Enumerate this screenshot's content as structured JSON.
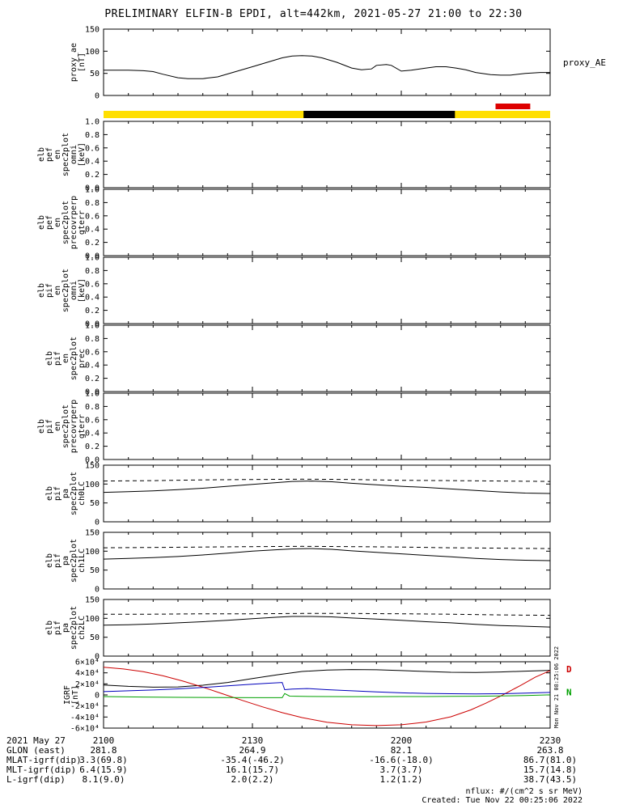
{
  "title": "PRELIMINARY ELFIN-B EPDI, alt=442km, 2021-05-27 21:00 to 22:30",
  "side_timestamp": "Mon Nov 21 08:25:06 2022",
  "footer": {
    "nflux": "nflux: #/(cm^2 s sr MeV)",
    "created": "Created: Tue Nov 22 00:25:06 2022"
  },
  "time_axis": {
    "ticks": [
      "2100",
      "2130",
      "2200",
      "2230"
    ],
    "tick_minutes": [
      0,
      30,
      60,
      90
    ],
    "minor_step": 5,
    "total": 90
  },
  "status_bar": {
    "segments": [
      {
        "name": "yellow-coverage-bar",
        "color": "#ffdf00",
        "t0": 0,
        "t1": 90,
        "row": "main"
      },
      {
        "name": "black-coverage-bar",
        "color": "#000000",
        "t0": 40.3,
        "t1": 70.8,
        "row": "main"
      },
      {
        "name": "red-coverage-bar",
        "color": "#dd0000",
        "t0": 79,
        "t1": 86,
        "row": "above"
      }
    ]
  },
  "ephemeris": {
    "date_label": "2021 May 27",
    "rows": [
      {
        "label": "GLON (east)",
        "values": [
          "281.8",
          "264.9",
          "82.1",
          "263.8"
        ]
      },
      {
        "label": "MLAT-igrf(dip)",
        "values": [
          "3.3(69.8)",
          "-35.4(-46.2)",
          "-16.6(-18.0)",
          "86.7(81.0)"
        ]
      },
      {
        "label": "MLT-igrf(dip)",
        "values": [
          "6.4(15.9)",
          "16.1(15.7)",
          "3.7(3.7)",
          "15.7(14.8)"
        ]
      },
      {
        "label": "L-igrf(dip)",
        "values": [
          "8.1(9.0)",
          "2.0(2.2)",
          "1.2(1.2)",
          "38.7(43.5)"
        ]
      }
    ]
  },
  "chart_data": [
    {
      "id": "proxy_ae",
      "type": "line",
      "ylabel_lines": [
        "proxy_ae",
        "[nT]"
      ],
      "right_label": "proxy_AE",
      "ylim": [
        0,
        150
      ],
      "yticks": [
        0,
        50,
        100,
        150
      ],
      "ytick_labels": [
        "0",
        "50",
        "100",
        "150"
      ],
      "series": [
        {
          "name": "proxy_AE",
          "color": "#000000",
          "dash": false,
          "x": [
            0,
            2,
            5,
            8,
            10,
            12,
            15,
            17,
            20,
            23,
            26,
            30,
            33,
            36,
            38,
            40,
            42,
            44,
            47,
            50,
            52,
            54,
            55,
            57,
            58,
            60,
            62,
            65,
            67,
            69,
            71,
            73,
            75,
            78,
            80,
            82,
            85,
            88,
            90
          ],
          "v": [
            57,
            57,
            57,
            56,
            54,
            48,
            40,
            38,
            38,
            42,
            52,
            65,
            75,
            85,
            89,
            90,
            89,
            85,
            75,
            62,
            58,
            60,
            68,
            70,
            68,
            55,
            57,
            62,
            65,
            65,
            62,
            58,
            52,
            47,
            46,
            46,
            50,
            52,
            52
          ]
        }
      ]
    },
    {
      "id": "elb_pef_en_omni",
      "type": "spectrogram",
      "ylabel_lines": [
        "elb",
        "pef",
        "en",
        "spec2plot",
        "omni",
        "[keV]"
      ],
      "ylim": [
        0,
        1
      ],
      "yticks": [
        0,
        0.2,
        0.4,
        0.6,
        0.8,
        1.0
      ],
      "ytick_labels": [
        "0.0",
        "0.2",
        "0.4",
        "0.6",
        "0.8",
        "1.0"
      ],
      "series": []
    },
    {
      "id": "elb_pef_en_precovrperp_gterr",
      "type": "spectrogram",
      "ylabel_lines": [
        "elb",
        "pef",
        "en",
        "spec2plot",
        "precovrperp",
        "gterr"
      ],
      "ylim": [
        0,
        1
      ],
      "yticks": [
        0,
        0.2,
        0.4,
        0.6,
        0.8,
        1.0
      ],
      "ytick_labels": [
        "0.0",
        "0.2",
        "0.4",
        "0.6",
        "0.8",
        "1.0"
      ],
      "series": []
    },
    {
      "id": "elb_pif_en_omni",
      "type": "spectrogram",
      "ylabel_lines": [
        "elb",
        "pif",
        "en",
        "spec2plot",
        "omni",
        "[keV]"
      ],
      "ylim": [
        0,
        1
      ],
      "yticks": [
        0,
        0.2,
        0.4,
        0.6,
        0.8,
        1.0
      ],
      "ytick_labels": [
        "0.0",
        "0.2",
        "0.4",
        "0.6",
        "0.8",
        "1.0"
      ],
      "series": []
    },
    {
      "id": "elb_pif_en_prec",
      "type": "spectrogram",
      "ylabel_lines": [
        "elb",
        "pif",
        "en",
        "spec2plot",
        "prec"
      ],
      "ylim": [
        0,
        1
      ],
      "yticks": [
        0,
        0.2,
        0.4,
        0.6,
        0.8,
        1.0
      ],
      "ytick_labels": [
        "0.0",
        "0.2",
        "0.4",
        "0.6",
        "0.8",
        "1.0"
      ],
      "series": []
    },
    {
      "id": "elb_pif_en_precovrperp_gterr",
      "type": "spectrogram",
      "ylabel_lines": [
        "elb",
        "pif",
        "en",
        "spec2plot",
        "precovrperp",
        "gterr"
      ],
      "ylim": [
        0,
        1
      ],
      "yticks": [
        0,
        0.2,
        0.4,
        0.6,
        0.8,
        1.0
      ],
      "ytick_labels": [
        "0.0",
        "0.2",
        "0.4",
        "0.6",
        "0.8",
        "1.0"
      ],
      "series": []
    },
    {
      "id": "ch0lc",
      "type": "line",
      "ylabel_lines": [
        "elb",
        "pif",
        "pa",
        "spec2plot",
        "ch0LC"
      ],
      "ylim": [
        0,
        150
      ],
      "yticks": [
        0,
        50,
        100,
        150
      ],
      "ytick_labels": [
        "0",
        "50",
        "100",
        "150"
      ],
      "series": [
        {
          "name": "pitch-angle",
          "color": "#000000",
          "dash": false,
          "x": [
            0,
            5,
            10,
            15,
            20,
            25,
            30,
            35,
            38,
            42,
            46,
            50,
            55,
            60,
            65,
            70,
            75,
            80,
            85,
            90
          ],
          "v": [
            78,
            80,
            82,
            85,
            89,
            94,
            99,
            104,
            107,
            108,
            106,
            102,
            98,
            94,
            91,
            87,
            83,
            79,
            76,
            75
          ]
        },
        {
          "name": "loss-cone",
          "color": "#000000",
          "dash": true,
          "x": [
            0,
            10,
            20,
            30,
            40,
            50,
            60,
            70,
            80,
            90
          ],
          "v": [
            108,
            109,
            111,
            112,
            113,
            112,
            110,
            109,
            108,
            107
          ]
        }
      ]
    },
    {
      "id": "ch1lc",
      "type": "line",
      "ylabel_lines": [
        "elb",
        "pif",
        "pa",
        "spec2plot",
        "ch1LC"
      ],
      "ylim": [
        0,
        150
      ],
      "yticks": [
        0,
        50,
        100,
        150
      ],
      "ytick_labels": [
        "0",
        "50",
        "100",
        "150"
      ],
      "series": [
        {
          "name": "pitch-angle",
          "color": "#000000",
          "dash": false,
          "x": [
            0,
            5,
            10,
            15,
            20,
            25,
            30,
            35,
            38,
            42,
            46,
            50,
            55,
            60,
            65,
            70,
            75,
            80,
            85,
            90
          ],
          "v": [
            79,
            81,
            83,
            86,
            90,
            95,
            100,
            104,
            106,
            107,
            105,
            101,
            97,
            93,
            89,
            85,
            81,
            78,
            76,
            75
          ]
        },
        {
          "name": "loss-cone",
          "color": "#000000",
          "dash": true,
          "x": [
            0,
            10,
            20,
            30,
            40,
            50,
            60,
            70,
            80,
            90
          ],
          "v": [
            109,
            110,
            111,
            112,
            113,
            112,
            111,
            109,
            108,
            107
          ]
        }
      ]
    },
    {
      "id": "ch2lc",
      "type": "line",
      "ylabel_lines": [
        "elb",
        "pif",
        "pa",
        "spec2plot",
        "ch2LC"
      ],
      "ylim": [
        0,
        150
      ],
      "yticks": [
        0,
        50,
        100,
        150
      ],
      "ytick_labels": [
        "0",
        "50",
        "100",
        "150"
      ],
      "series": [
        {
          "name": "pitch-angle",
          "color": "#000000",
          "dash": false,
          "x": [
            0,
            5,
            10,
            15,
            20,
            25,
            30,
            35,
            38,
            42,
            46,
            50,
            55,
            60,
            65,
            70,
            75,
            80,
            85,
            90
          ],
          "v": [
            82,
            83,
            85,
            88,
            91,
            95,
            99,
            103,
            105,
            105,
            104,
            101,
            98,
            95,
            91,
            88,
            84,
            81,
            79,
            77
          ]
        },
        {
          "name": "loss-cone",
          "color": "#000000",
          "dash": true,
          "x": [
            0,
            10,
            20,
            30,
            40,
            50,
            60,
            70,
            80,
            90
          ],
          "v": [
            111,
            111,
            112,
            112,
            113,
            113,
            112,
            111,
            109,
            108
          ]
        }
      ]
    },
    {
      "id": "igrf",
      "type": "line",
      "ylabel_lines": [
        "IGRF",
        "[nT]"
      ],
      "ylim": [
        -60000,
        60000
      ],
      "yticks": [
        -60000,
        -40000,
        -20000,
        0,
        20000,
        40000,
        60000
      ],
      "ytick_labels": [
        "-6×10⁴",
        "-4×10⁴",
        "-2×10⁴",
        "0",
        "2×10⁴",
        "4×10⁴",
        "6×10⁴"
      ],
      "right_labels": [
        {
          "text": "D",
          "color": "#cc0000",
          "value": 47000
        },
        {
          "text": "N",
          "color": "#00a000",
          "value": 5000
        }
      ],
      "series": [
        {
          "name": "component-black",
          "color": "#000000",
          "dash": false,
          "x": [
            0,
            5,
            10,
            15,
            20,
            25,
            30,
            35,
            40,
            45,
            50,
            55,
            60,
            65,
            70,
            75,
            80,
            85,
            90
          ],
          "v": [
            18000,
            15500,
            14000,
            14500,
            17500,
            22500,
            29500,
            36500,
            42500,
            45000,
            46000,
            45500,
            44000,
            42500,
            41000,
            40500,
            41500,
            43000,
            44500
          ]
        },
        {
          "name": "component-red",
          "color": "#cc0000",
          "dash": false,
          "x": [
            0,
            4,
            8,
            12,
            16,
            20,
            24,
            28,
            32,
            36,
            40,
            45,
            50,
            55,
            60,
            65,
            70,
            74,
            77,
            80,
            84,
            87,
            90
          ],
          "v": [
            50000,
            47000,
            42000,
            34500,
            25000,
            14000,
            2000,
            -10000,
            -21500,
            -32000,
            -41000,
            -49500,
            -54000,
            -55500,
            -54000,
            -49000,
            -39500,
            -27000,
            -15000,
            -2000,
            17000,
            32000,
            44000
          ]
        },
        {
          "name": "component-blue",
          "color": "#0000bb",
          "dash": false,
          "x": [
            0,
            5,
            10,
            15,
            20,
            25,
            30,
            33,
            36,
            36.5,
            38,
            41,
            45,
            50,
            55,
            60,
            65,
            70,
            75,
            80,
            85,
            90
          ],
          "v": [
            6000,
            7500,
            9000,
            11000,
            13500,
            16500,
            19500,
            21000,
            22500,
            9500,
            10500,
            11500,
            9500,
            7500,
            5500,
            3800,
            2800,
            2200,
            1800,
            2200,
            3200,
            4500
          ]
        },
        {
          "name": "component-green",
          "color": "#00a000",
          "dash": false,
          "x": [
            0,
            8,
            16,
            24,
            32,
            36,
            36.5,
            37.5,
            40,
            45,
            50,
            55,
            60,
            65,
            70,
            75,
            80,
            85,
            90
          ],
          "v": [
            -3000,
            -3800,
            -4400,
            -4800,
            -5000,
            -5000,
            2500,
            -2200,
            -2600,
            -3000,
            -3100,
            -3100,
            -3000,
            -2900,
            -2600,
            -2300,
            -1900,
            -1000,
            200
          ]
        }
      ]
    }
  ]
}
